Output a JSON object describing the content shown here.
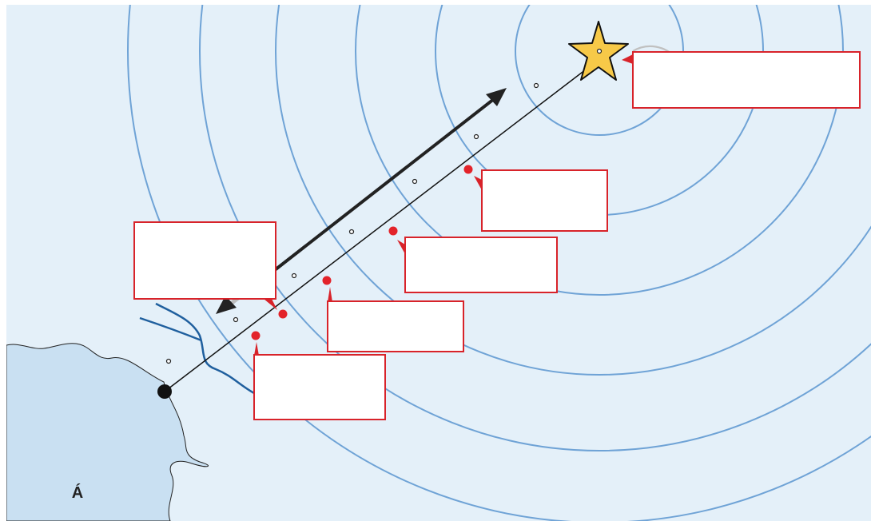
{
  "map": {
    "region_label": "Á"
  },
  "colors": {
    "sea": "#e4f0f9",
    "land": "#c9e0f2",
    "ring": "#6fa3d6",
    "gray_ring": "#c0c0c0",
    "river": "#1f5f9e",
    "star_fill": "#f7c948",
    "label_border": "#d8232a",
    "marker": "#e3232a"
  },
  "label_boxes": [
    {
      "id": "epicenter-label",
      "text": ""
    },
    {
      "id": "point-label-1",
      "text": ""
    },
    {
      "id": "point-label-2",
      "text": ""
    },
    {
      "id": "point-label-3",
      "text": ""
    },
    {
      "id": "point-label-4",
      "text": ""
    },
    {
      "id": "coast-label",
      "text": ""
    }
  ]
}
